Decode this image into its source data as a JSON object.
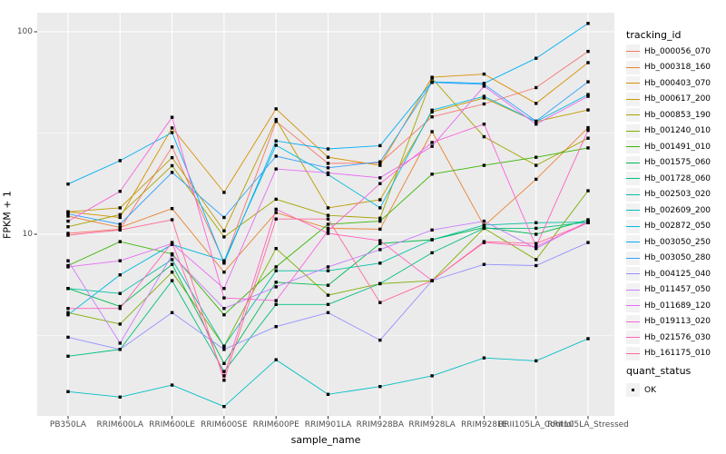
{
  "chart_data": {
    "type": "line",
    "title": "",
    "xlabel": "sample_name",
    "ylabel": "FPKM + 1",
    "y_scale": "log10",
    "ylim": [
      1.3,
      124
    ],
    "yticks": [
      {
        "label": "100",
        "value": 100
      },
      {
        "label": "10",
        "value": 10
      }
    ],
    "grid": "gray panel, white major+minor gridlines",
    "legend_position": "right",
    "legend_title": "tracking_id",
    "point_shape": "black-square",
    "colors": {
      "panel_bg": "#EBEBEB",
      "grid": "#FFFFFF",
      "tick_text": "#4D4D4D",
      "point": "#000000",
      "legend_key_bg": "#F2F2F2"
    },
    "categories": [
      "PB350LA",
      "RRIM600LA",
      "RRIM600LE",
      "RRIM600SE",
      "RRIM600PE",
      "RRIM901LA",
      "RRIM928BA",
      "RRIM928LA",
      "RRIM928LE",
      "RRII105LA_Control",
      "RRII105LA_Stressed"
    ],
    "series": [
      {
        "name": "Hb_000056_070",
        "color": "#F8766D",
        "values": [
          10.1,
          10.6,
          27.0,
          7.3,
          36.1,
          22.4,
          22.5,
          38.0,
          44.0,
          53.0,
          80.0
        ]
      },
      {
        "name": "Hb_000318_160",
        "color": "#EA8331",
        "values": [
          12.3,
          10.8,
          13.4,
          6.5,
          12.8,
          10.7,
          10.6,
          32.1,
          11.0,
          18.7,
          33.6
        ]
      },
      {
        "name": "Hb_000403_070",
        "color": "#D89000",
        "values": [
          12.9,
          12.1,
          33.5,
          16.1,
          41.6,
          24.0,
          21.9,
          59.6,
          61.8,
          44.3,
          70.4
        ]
      },
      {
        "name": "Hb_000617_200",
        "color": "#C09B00",
        "values": [
          12.9,
          13.5,
          23.9,
          10.4,
          36.9,
          13.5,
          14.8,
          40.2,
          47.1,
          36.0,
          41.1
        ]
      },
      {
        "name": "Hb_000853_190",
        "color": "#A3A500",
        "values": [
          10.9,
          12.5,
          21.8,
          9.7,
          14.9,
          12.4,
          12.0,
          59.0,
          30.3,
          21.9,
          29.8
        ]
      },
      {
        "name": "Hb_001240_010",
        "color": "#7CAE00",
        "values": [
          4.1,
          3.6,
          6.5,
          2.8,
          8.5,
          5.0,
          5.7,
          5.9,
          10.7,
          7.5,
          16.4
        ]
      },
      {
        "name": "Hb_001491_010",
        "color": "#39B600",
        "values": [
          7.0,
          9.2,
          8.0,
          4.0,
          6.9,
          11.2,
          11.6,
          19.8,
          21.9,
          24.0,
          26.7
        ]
      },
      {
        "name": "Hb_001575_060",
        "color": "#00BB4E",
        "values": [
          5.4,
          4.4,
          7.1,
          2.3,
          5.8,
          5.6,
          9.0,
          9.4,
          10.8,
          10.0,
          11.8
        ]
      },
      {
        "name": "Hb_001728_060",
        "color": "#00BF7D",
        "values": [
          2.5,
          2.7,
          5.9,
          2.1,
          4.5,
          4.5,
          5.7,
          8.1,
          10.7,
          10.7,
          11.5
        ]
      },
      {
        "name": "Hb_002503_020",
        "color": "#00C1A3",
        "values": [
          5.4,
          5.1,
          7.5,
          2.8,
          6.6,
          6.6,
          7.2,
          9.4,
          11.1,
          11.4,
          11.5
        ]
      },
      {
        "name": "Hb_002609_200",
        "color": "#00BFC4",
        "values": [
          1.67,
          1.57,
          1.8,
          1.41,
          2.4,
          1.62,
          1.77,
          2.0,
          2.45,
          2.37,
          3.05
        ]
      },
      {
        "name": "Hb_002872_050",
        "color": "#00BAE0",
        "values": [
          4.0,
          6.3,
          8.9,
          7.4,
          27.5,
          19.7,
          13.5,
          41.0,
          48.0,
          36.0,
          49.0
        ]
      },
      {
        "name": "Hb_003050_250",
        "color": "#00B0F6",
        "values": [
          17.7,
          23.1,
          31.8,
          7.2,
          28.9,
          26.4,
          27.4,
          56.6,
          55.6,
          74.0,
          110.0
        ]
      },
      {
        "name": "Hb_003050_280",
        "color": "#35A2FF",
        "values": [
          12.6,
          11.2,
          20.2,
          12.1,
          24.3,
          21.3,
          22.8,
          56.2,
          55.0,
          36.2,
          56.6
        ]
      },
      {
        "name": "Hb_004125_040",
        "color": "#9590FF",
        "values": [
          3.1,
          2.7,
          4.1,
          2.7,
          3.5,
          4.1,
          3.0,
          5.9,
          7.1,
          7.0,
          9.1
        ]
      },
      {
        "name": "Hb_011457_050",
        "color": "#C77CFF",
        "values": [
          7.4,
          2.9,
          7.9,
          4.3,
          5.5,
          6.9,
          8.4,
          10.5,
          11.6,
          8.5,
          11.6
        ]
      },
      {
        "name": "Hb_011689_120",
        "color": "#E76BF3",
        "values": [
          6.9,
          7.4,
          9.0,
          5.4,
          21.0,
          20.1,
          19.0,
          27.2,
          53.9,
          35.0,
          48.0
        ]
      },
      {
        "name": "Hb_019113_020",
        "color": "#FA62DB",
        "values": [
          11.6,
          16.3,
          37.8,
          4.85,
          4.7,
          10.4,
          17.8,
          28.4,
          35.0,
          8.7,
          11.4
        ]
      },
      {
        "name": "Hb_021576_030",
        "color": "#FF62BC",
        "values": [
          4.3,
          4.3,
          9.1,
          2.0,
          13.3,
          10.1,
          9.3,
          5.9,
          9.1,
          8.7,
          32.6
        ]
      },
      {
        "name": "Hb_161175_010",
        "color": "#FF6A98",
        "values": [
          9.9,
          10.5,
          11.8,
          1.9,
          11.9,
          11.9,
          4.6,
          5.9,
          9.2,
          9.0,
          11.4
        ]
      }
    ],
    "legend2_title": "quant_status",
    "legend2_items": [
      {
        "label": "OK",
        "marker": "black-square"
      }
    ]
  }
}
